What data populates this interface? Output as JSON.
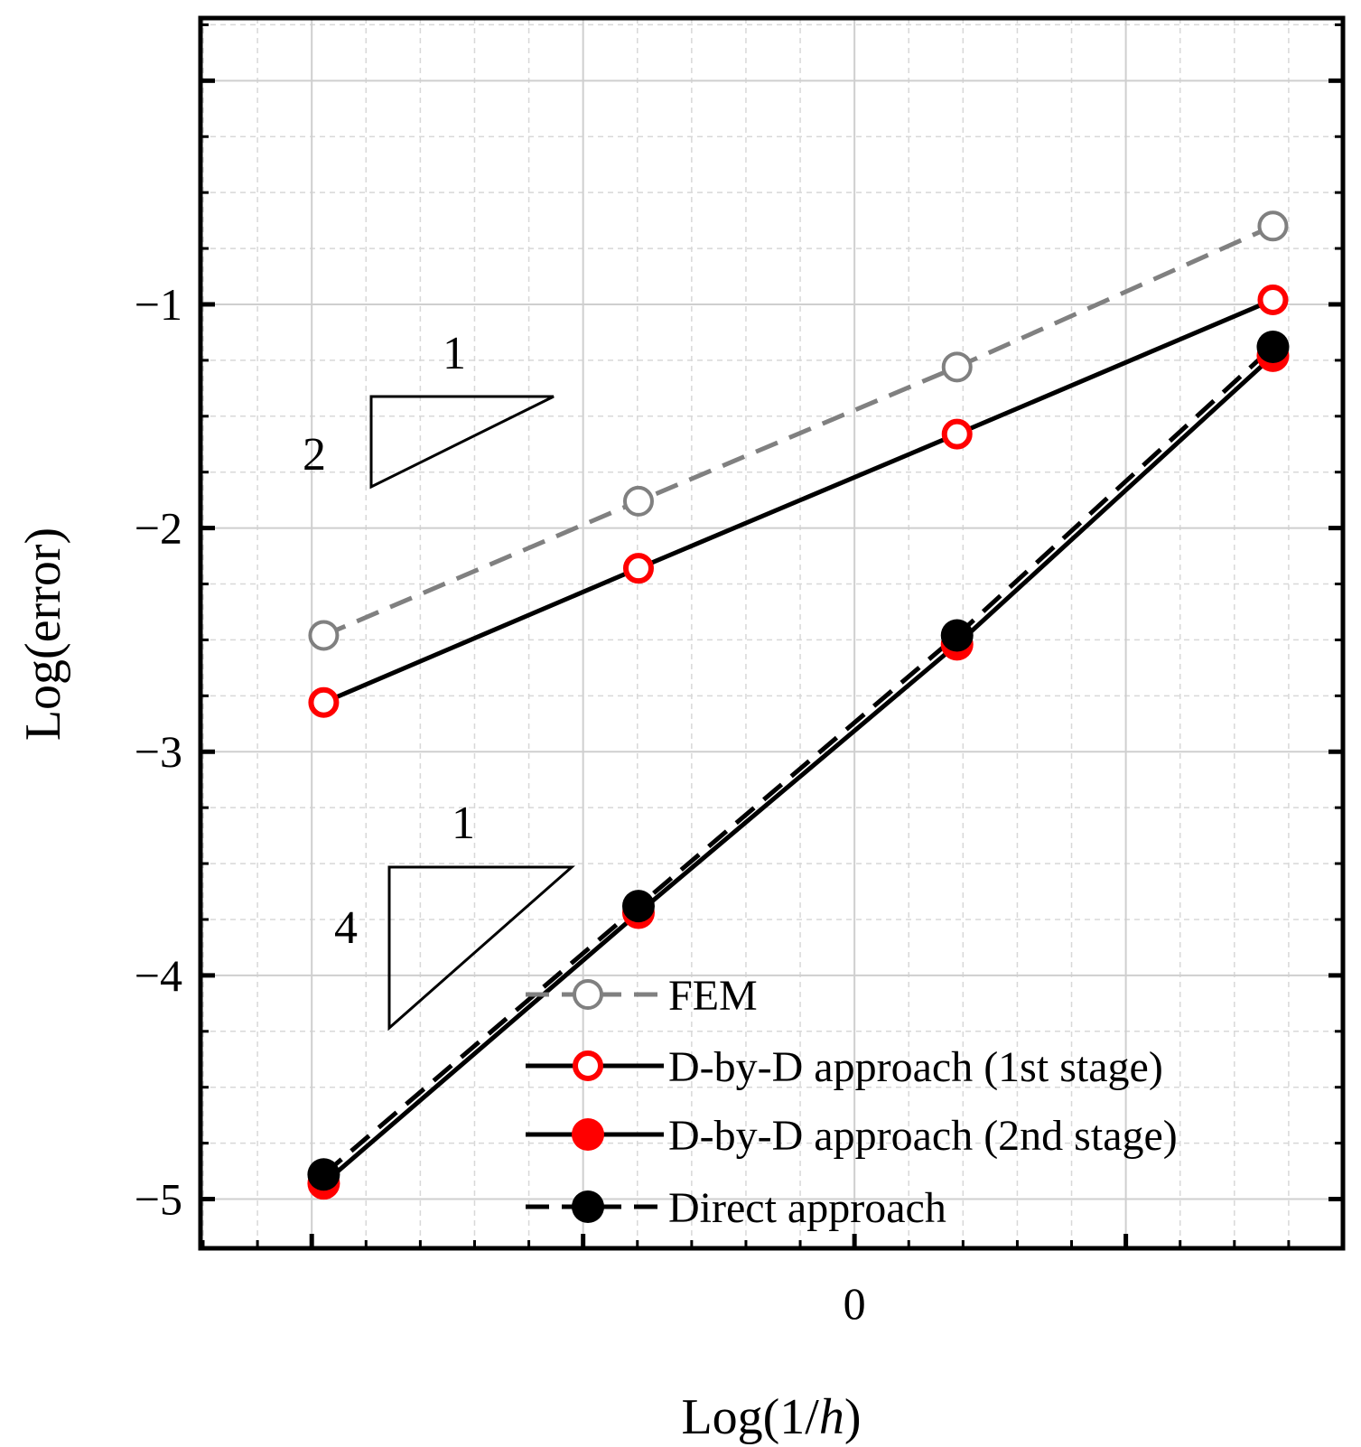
{
  "chart_data": {
    "type": "line",
    "title": "",
    "xlabel_prefix": "Log(1/",
    "xlabel_var": "h",
    "xlabel_suffix": ")",
    "ylabel": "Log(error)",
    "xlim": [
      -1.205,
      0.9
    ],
    "ylim": [
      -5.22,
      0.28
    ],
    "x_ticks": [
      {
        "value": 0,
        "label": "0"
      }
    ],
    "y_ticks": [
      {
        "value": -1,
        "label": "−1"
      },
      {
        "value": -2,
        "label": "−2"
      },
      {
        "value": -3,
        "label": "−3"
      },
      {
        "value": -4,
        "label": "−4"
      },
      {
        "value": -5,
        "label": "−5"
      }
    ],
    "grid": true,
    "legend_position": "bottom-right",
    "series": [
      {
        "name": "FEM",
        "x": [
          -0.978,
          -0.398,
          0.189,
          0.771
        ],
        "y": [
          -2.48,
          -1.88,
          -1.28,
          -0.65
        ],
        "color": "#808080",
        "line": "dashed",
        "marker": "open-circle"
      },
      {
        "name": "D-by-D approach (1st stage)",
        "x": [
          -0.978,
          -0.398,
          0.189,
          0.771
        ],
        "y": [
          -2.78,
          -2.18,
          -1.58,
          -0.98
        ],
        "color": "#000000",
        "marker_color": "#ff0000",
        "line": "solid",
        "marker": "open-circle"
      },
      {
        "name": "D-by-D approach (2nd stage)",
        "x": [
          -0.978,
          -0.398,
          0.189,
          0.771
        ],
        "y": [
          -4.93,
          -3.72,
          -2.52,
          -1.23
        ],
        "color": "#000000",
        "marker_color": "#ff0000",
        "line": "solid",
        "marker": "filled-circle"
      },
      {
        "name": "Direct approach",
        "x": [
          -0.978,
          -0.398,
          0.189,
          0.771
        ],
        "y": [
          -4.89,
          -3.69,
          -2.48,
          -1.19
        ],
        "color": "#000000",
        "marker_color": "#000000",
        "line": "dashed",
        "marker": "filled-circle"
      }
    ],
    "annotations": [
      {
        "type": "slope-triangle",
        "run_label": "1",
        "rise_label": "2"
      },
      {
        "type": "slope-triangle",
        "run_label": "1",
        "rise_label": "4"
      }
    ]
  }
}
